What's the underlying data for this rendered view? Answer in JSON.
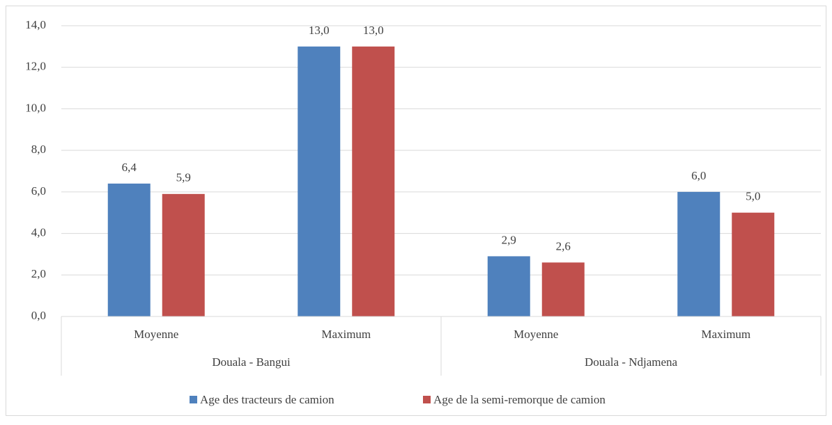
{
  "chart_data": {
    "type": "bar",
    "category_groups": [
      {
        "name": "Douala - Bangui",
        "categories": [
          "Moyenne",
          "Maximum"
        ]
      },
      {
        "name": "Douala - Ndjamena",
        "categories": [
          "Moyenne",
          "Maximum"
        ]
      }
    ],
    "series": [
      {
        "name": "Age des tracteurs de camion",
        "color": "#4f81bd",
        "values": [
          6.4,
          13.0,
          2.9,
          6.0
        ],
        "value_labels": [
          "6,4",
          "13,0",
          "2,9",
          "6,0"
        ]
      },
      {
        "name": "Age de la semi-remorque de camion",
        "color": "#c0504d",
        "values": [
          5.9,
          13.0,
          2.6,
          5.0
        ],
        "value_labels": [
          "5,9",
          "13,0",
          "2,6",
          "5,0"
        ]
      }
    ],
    "ylim": [
      0,
      14
    ],
    "yticks": [
      {
        "value": 0,
        "label": "0,0"
      },
      {
        "value": 2,
        "label": "2,0"
      },
      {
        "value": 4,
        "label": "4,0"
      },
      {
        "value": 6,
        "label": "6,0"
      },
      {
        "value": 8,
        "label": "8,0"
      },
      {
        "value": 10,
        "label": "10,0"
      },
      {
        "value": 12,
        "label": "12,0"
      },
      {
        "value": 14,
        "label": "14,0"
      }
    ],
    "grid": true,
    "legend": "bottom"
  }
}
